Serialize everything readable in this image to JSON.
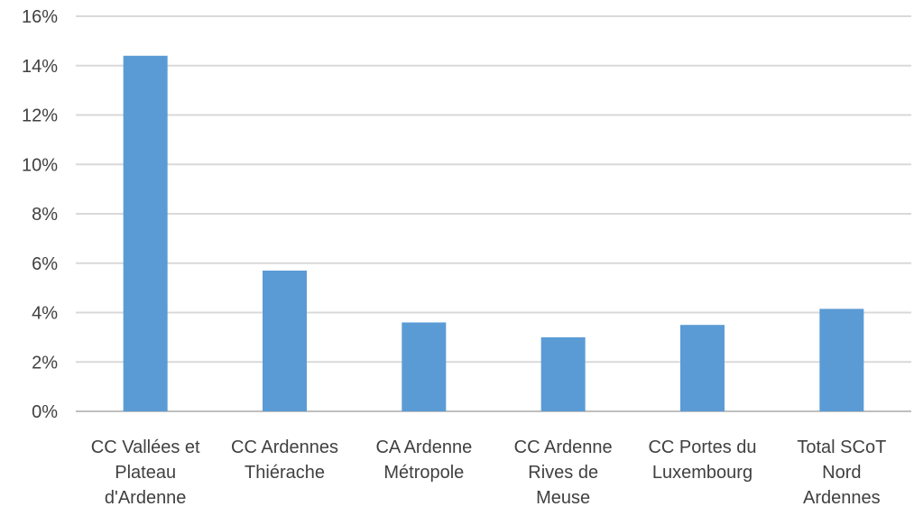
{
  "chart_data": {
    "type": "bar",
    "categories": [
      [
        "CC Vallées et",
        "Plateau",
        "d'Ardenne"
      ],
      [
        "CC Ardennes",
        "Thiérache"
      ],
      [
        "CA Ardenne",
        "Métropole"
      ],
      [
        "CC Ardenne",
        "Rives de",
        "Meuse"
      ],
      [
        "CC Portes du",
        "Luxembourg"
      ],
      [
        "Total SCoT",
        "Nord",
        "Ardennes"
      ]
    ],
    "values": [
      14.4,
      5.7,
      3.6,
      3.0,
      3.5,
      4.15
    ],
    "value_unit": "%",
    "yticks": [
      "0%",
      "2%",
      "4%",
      "6%",
      "8%",
      "10%",
      "12%",
      "14%",
      "16%"
    ],
    "ylim": [
      0,
      16
    ],
    "grid": true,
    "colors": {
      "bar": "#5B9BD5",
      "grid": "#D9D9D9",
      "axis": "#BFBFBF",
      "text": "#404040"
    }
  }
}
